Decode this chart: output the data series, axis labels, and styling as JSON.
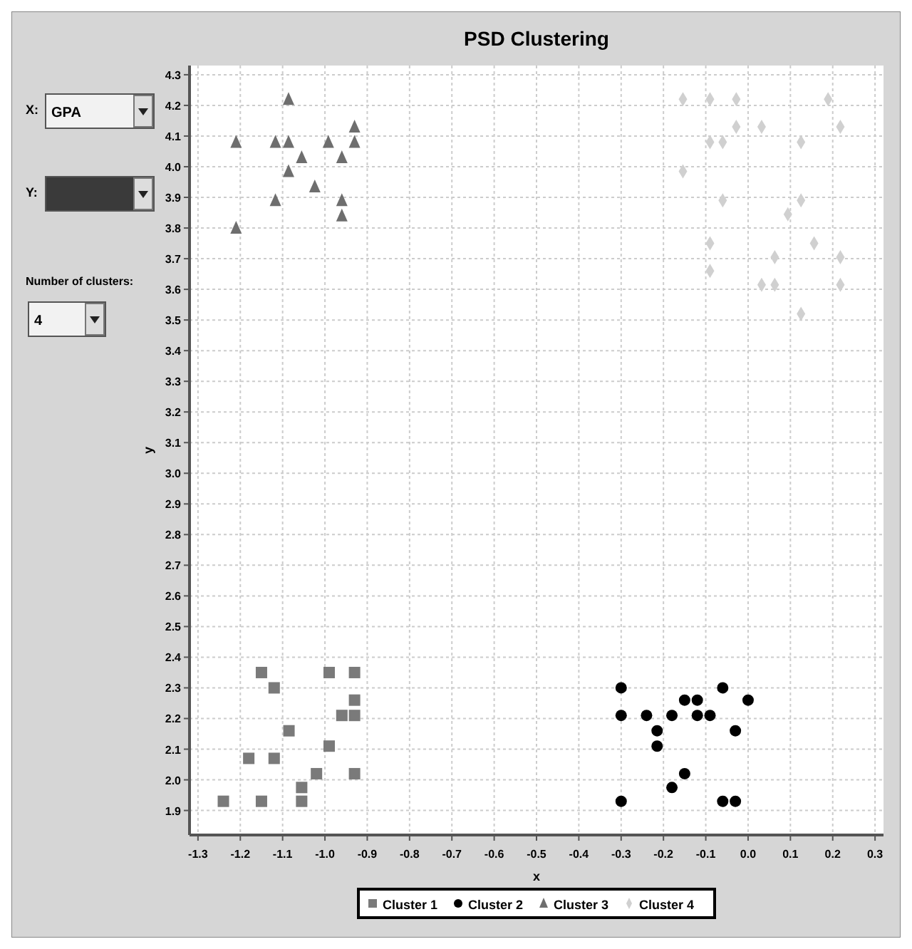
{
  "chart_data": {
    "type": "scatter",
    "title": "PSD Clustering",
    "xlabel": "x",
    "ylabel": "y",
    "xlim": [
      -1.32,
      0.32
    ],
    "ylim": [
      1.82,
      4.33
    ],
    "xticks": [
      -1.3,
      -1.2,
      -1.1,
      {
        "value": -1,
        "label": "-1.0"
      },
      -0.9,
      -0.8,
      -0.7,
      -0.6,
      -0.5,
      -0.4,
      -0.3,
      -0.2,
      -0.1,
      {
        "value": 0,
        "label": "0.0"
      },
      0.1,
      0.2,
      0.3
    ],
    "yticks": [
      1.9,
      {
        "value": 2,
        "label": "2.0"
      },
      2.1,
      2.2,
      2.3,
      2.4,
      2.5,
      2.6,
      2.7,
      2.8,
      2.9,
      {
        "value": 3,
        "label": "3.0"
      },
      3.1,
      3.2,
      3.3,
      3.4,
      3.5,
      3.6,
      3.7,
      3.8,
      3.9,
      {
        "value": 4,
        "label": "4.0"
      },
      4.1,
      4.2,
      4.3
    ],
    "grid": true,
    "legend": "bottom",
    "annotations": [
      "X:",
      "GPA",
      "Y:",
      "Number of clusters:",
      "4"
    ],
    "series": [
      {
        "name": "Cluster 1",
        "color": "#7a7a7a",
        "marker": "square",
        "x": [
          -1.24,
          -1.15,
          -1.12,
          -1.18,
          -1.12,
          -1.15,
          -1.085,
          -1.055,
          -1.055,
          -1.02,
          -0.99,
          -0.99,
          -0.96,
          -0.93,
          -0.93,
          -0.93,
          -0.93
        ],
        "values": [
          1.93,
          2.35,
          2.3,
          2.07,
          2.07,
          1.93,
          2.16,
          1.975,
          1.93,
          2.02,
          2.35,
          2.11,
          2.21,
          2.35,
          2.26,
          2.21,
          2.02
        ]
      },
      {
        "name": "Cluster 2",
        "color": "#000000",
        "marker": "circle",
        "x": [
          -0.3,
          -0.3,
          -0.3,
          -0.24,
          -0.215,
          -0.215,
          -0.18,
          -0.18,
          -0.15,
          -0.15,
          -0.12,
          -0.12,
          -0.09,
          -0.06,
          -0.06,
          -0.03,
          -0.03,
          0.0
        ],
        "values": [
          2.3,
          2.21,
          1.93,
          2.21,
          2.16,
          2.11,
          2.21,
          1.975,
          2.26,
          2.02,
          2.26,
          2.21,
          2.21,
          2.3,
          1.93,
          2.16,
          1.93,
          2.26
        ]
      },
      {
        "name": "Cluster 3",
        "color": "#6e6e6e",
        "marker": "triangle",
        "x": [
          -1.21,
          -1.21,
          -1.117,
          -1.086,
          -1.086,
          -1.086,
          -1.117,
          -1.055,
          -1.024,
          -0.992,
          -0.96,
          -0.96,
          -0.96,
          -0.93,
          -0.93
        ],
        "values": [
          3.8,
          4.08,
          4.08,
          4.08,
          4.22,
          3.985,
          3.89,
          4.03,
          3.935,
          4.08,
          4.03,
          3.89,
          3.84,
          4.13,
          4.08
        ]
      },
      {
        "name": "Cluster 4",
        "color": "#d0d0d0",
        "marker": "diamond",
        "x": [
          -0.154,
          -0.09,
          -0.028,
          0.189,
          -0.028,
          0.032,
          0.218,
          -0.09,
          -0.06,
          0.125,
          -0.154,
          -0.06,
          0.125,
          0.094,
          -0.09,
          0.156,
          0.063,
          0.218,
          -0.09,
          0.032,
          0.063,
          0.218,
          0.125
        ],
        "values": [
          4.22,
          4.22,
          4.22,
          4.22,
          4.13,
          4.13,
          4.13,
          4.08,
          4.08,
          4.08,
          3.985,
          3.89,
          3.89,
          3.845,
          3.75,
          3.75,
          3.705,
          3.705,
          3.66,
          3.615,
          3.615,
          3.615,
          3.52
        ]
      }
    ]
  }
}
